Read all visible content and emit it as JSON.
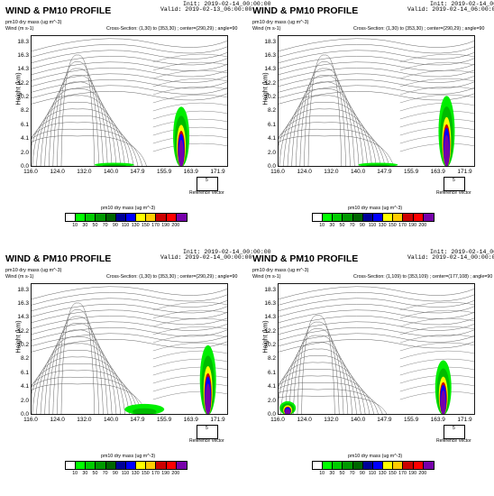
{
  "panels": [
    {
      "title": "WIND & PM10 PROFILE",
      "init": "Init: 2019-02-14_00:00:00",
      "valid": "Valid: 2019-02-13_06:00:00",
      "var1": "pm10 dry mass   (ug m^-3)",
      "var2": "Wind    (m s-1)",
      "cross_section": "Cross-Section: (1,30) to (353,30) ; center=(290,29) ; angle=90"
    },
    {
      "title": "WIND & PM10 PROFILE",
      "init": "Init: 2019-02-14_00:00:00",
      "valid": "Valid: 2019-02-14_06:00:00",
      "var1": "pm10 dry mass   (ug m^-3)",
      "var2": "Wind    (m s-1)",
      "cross_section": "Cross-Section: (1,30) to (353,30) ; center=(290,29) ; angle=90"
    },
    {
      "title": "WIND & PM10 PROFILE",
      "init": "Init: 2019-02-14_00:00:00",
      "valid": "Valid: 2019-02-14_00:00:00",
      "var1": "pm10 dry mass   (ug m^-3)",
      "var2": "Wind    (m s-1)",
      "cross_section": "Cross-Section: (1,30) to (353,30) ; center=(290,29) ; angle=90"
    },
    {
      "title": "WIND & PM10 PROFILE",
      "init": "Init: 2019-02-14_00:00:00",
      "valid": "Valid: 2019-02-14_00:00:00",
      "var1": "pm10 dry mass   (ug m^-3)",
      "var2": "Wind    (m s-1)",
      "cross_section": "Cross-Section: (1,109) to (353,109) ; center=(177,108) ; angle=90"
    }
  ],
  "axis": {
    "ylabel": "Height (km)",
    "yticks": [
      "18.3",
      "16.3",
      "14.3",
      "12.2",
      "10.2",
      "8.2",
      "6.1",
      "4.1",
      "2.0",
      "0.0"
    ],
    "xticks": [
      "116.0",
      "124.0",
      "132.0",
      "140.0",
      "147.9",
      "155.9",
      "163.9",
      "171.9"
    ]
  },
  "reference_vector": {
    "value": "5",
    "label": "Reference Vector"
  },
  "colorbar": {
    "title": "pm10 dry mass   (ug m^-3)",
    "labels": [
      "10",
      "30",
      "50",
      "70",
      "90",
      "110",
      "130",
      "150",
      "170",
      "190",
      "200"
    ],
    "colors": [
      "#ffffff",
      "#00ff00",
      "#00cc00",
      "#009900",
      "#006600",
      "#000099",
      "#0000ff",
      "#ffff00",
      "#ffcc00",
      "#cc0000",
      "#ff0000",
      "#7700aa"
    ]
  },
  "chart_data": [
    {
      "type": "heatmap",
      "title": "WIND & PM10 PROFILE",
      "xlabel": "",
      "ylabel": "Height (km)",
      "ylim": [
        0,
        19.3
      ],
      "xlim": [
        116.0,
        175.0
      ],
      "plumes": [
        {
          "x_center": 161.0,
          "height_top": 8.8,
          "peak": "200"
        },
        {
          "x_center": 141.0,
          "height_top": 0.6,
          "peak": "50"
        }
      ]
    },
    {
      "type": "heatmap",
      "title": "WIND & PM10 PROFILE",
      "xlabel": "",
      "ylabel": "Height (km)",
      "ylim": [
        0,
        19.3
      ],
      "xlim": [
        116.0,
        175.0
      ],
      "plumes": [
        {
          "x_center": 166.5,
          "height_top": 10.4,
          "peak": "200"
        },
        {
          "x_center": 146.0,
          "height_top": 0.6,
          "peak": "50"
        }
      ]
    },
    {
      "type": "heatmap",
      "title": "WIND & PM10 PROFILE",
      "xlabel": "",
      "ylabel": "Height (km)",
      "ylim": [
        0,
        19.3
      ],
      "xlim": [
        116.0,
        175.0
      ],
      "plumes": [
        {
          "x_center": 169.0,
          "height_top": 10.2,
          "peak": "200"
        },
        {
          "x_center": 150.0,
          "height_top": 1.6,
          "peak": "50"
        }
      ]
    },
    {
      "type": "heatmap",
      "title": "WIND & PM10 PROFILE",
      "xlabel": "",
      "ylabel": "Height (km)",
      "ylim": [
        0,
        19.3
      ],
      "xlim": [
        116.0,
        175.0
      ],
      "plumes": [
        {
          "x_center": 165.5,
          "height_top": 8.0,
          "peak": "200"
        },
        {
          "x_center": 119.0,
          "height_top": 2.0,
          "peak": "200"
        }
      ]
    }
  ]
}
